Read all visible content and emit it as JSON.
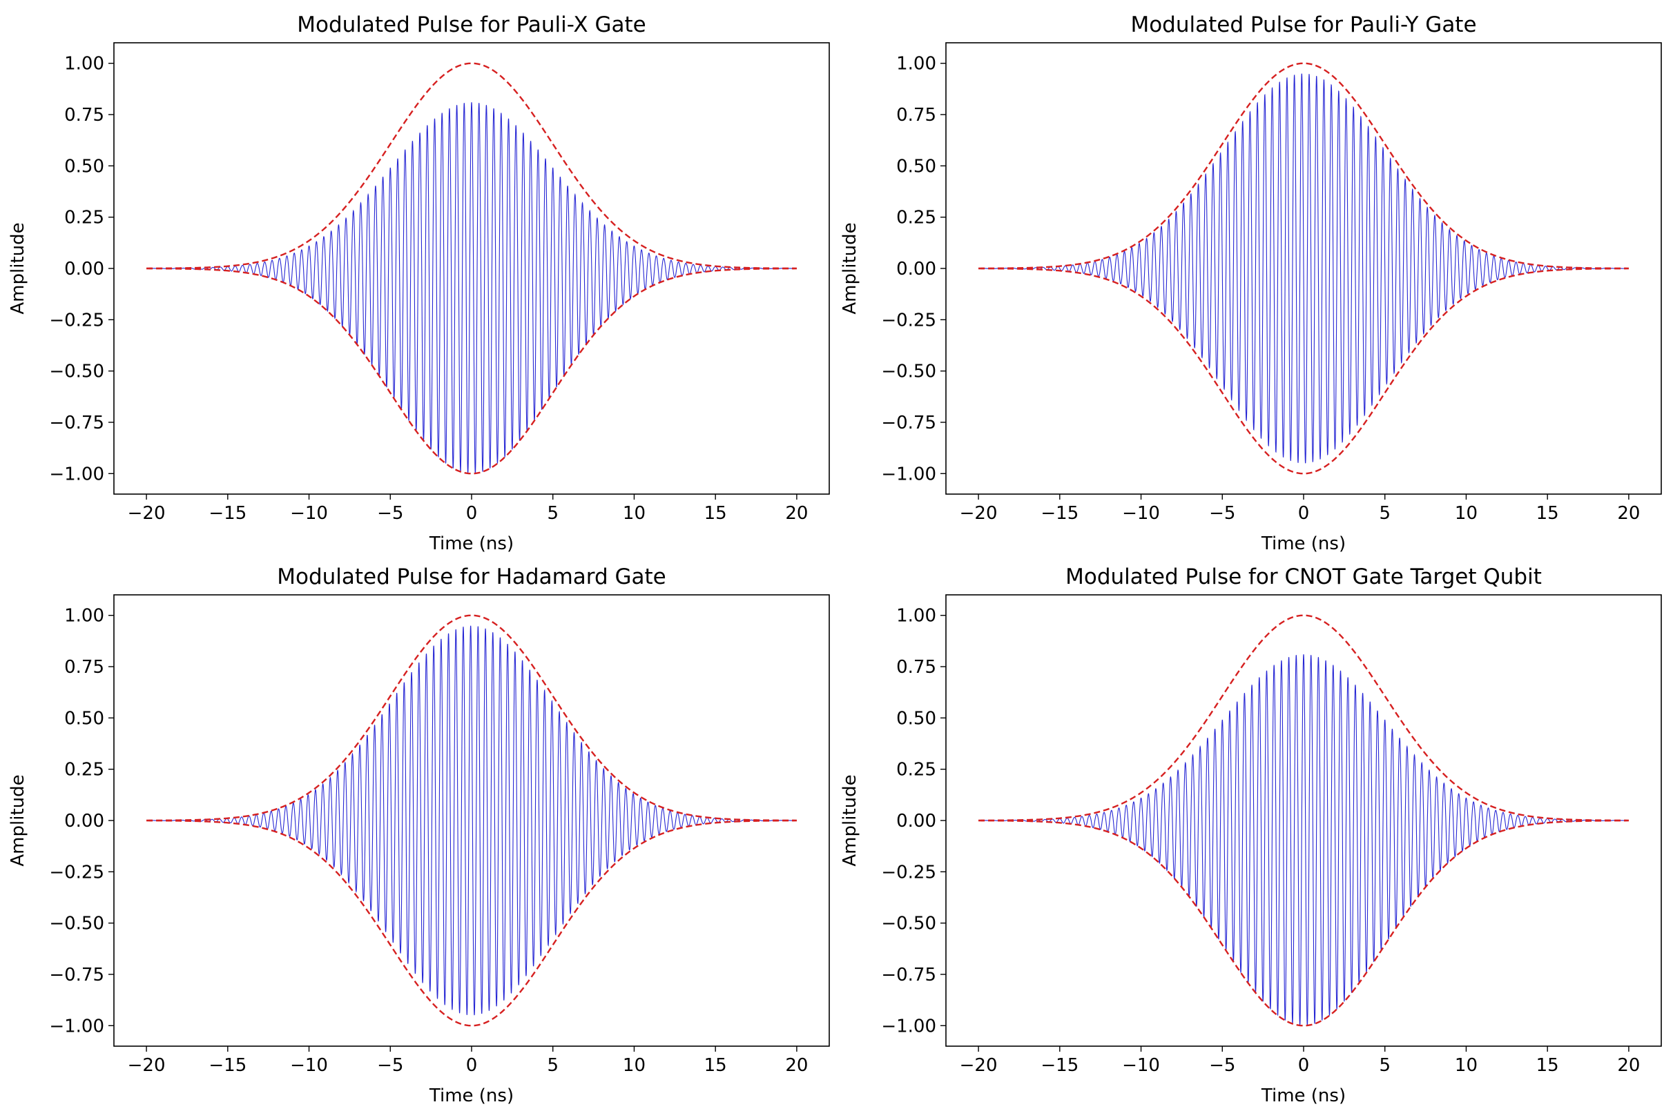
{
  "figure": {
    "layout": "2x2 grid of line charts"
  },
  "chart_data": [
    {
      "type": "line",
      "title": "Modulated Pulse for Pauli-X Gate",
      "xlabel": "Time (ns)",
      "ylabel": "Amplitude",
      "xlim": [
        -22,
        22
      ],
      "ylim": [
        -1.1,
        1.1
      ],
      "xticks": [
        -20,
        -15,
        -10,
        -5,
        0,
        5,
        10,
        15,
        20
      ],
      "xtick_labels": [
        "−20",
        "−15",
        "−10",
        "−5",
        "0",
        "5",
        "10",
        "15",
        "20"
      ],
      "yticks": [
        1.0,
        0.75,
        0.5,
        0.25,
        0.0,
        -0.25,
        -0.5,
        -0.75,
        -1.0
      ],
      "ytick_labels": [
        "1.00",
        "0.75",
        "0.50",
        "0.25",
        "0.00",
        "−0.25",
        "−0.50",
        "−0.75",
        "−1.00"
      ],
      "grid": false,
      "series": [
        {
          "role": "modulated-signal",
          "color": "#0000cc",
          "style": "solid",
          "envelope": "gaussian",
          "sigma_ns": 5,
          "peak_amplitude": 0.81,
          "trough_amplitude": -1.0,
          "carrier_cycles_per_ns": 2.2,
          "phase": 0
        },
        {
          "role": "envelope",
          "color": "#d62020",
          "style": "dashed",
          "envelope": "gaussian",
          "sigma_ns": 5,
          "amplitude": 1.0
        }
      ]
    },
    {
      "type": "line",
      "title": "Modulated Pulse for Pauli-Y Gate",
      "xlabel": "Time (ns)",
      "ylabel": "Amplitude",
      "xlim": [
        -22,
        22
      ],
      "ylim": [
        -1.1,
        1.1
      ],
      "xticks": [
        -20,
        -15,
        -10,
        -5,
        0,
        5,
        10,
        15,
        20
      ],
      "xtick_labels": [
        "−20",
        "−15",
        "−10",
        "−5",
        "0",
        "5",
        "10",
        "15",
        "20"
      ],
      "yticks": [
        1.0,
        0.75,
        0.5,
        0.25,
        0.0,
        -0.25,
        -0.5,
        -0.75,
        -1.0
      ],
      "ytick_labels": [
        "1.00",
        "0.75",
        "0.50",
        "0.25",
        "0.00",
        "−0.25",
        "−0.50",
        "−0.75",
        "−1.00"
      ],
      "grid": false,
      "series": [
        {
          "role": "modulated-signal",
          "color": "#0000cc",
          "style": "solid",
          "envelope": "gaussian",
          "sigma_ns": 5,
          "peak_amplitude": 0.95,
          "trough_amplitude": -0.95,
          "carrier_cycles_per_ns": 2.2,
          "phase": 1.5708
        },
        {
          "role": "envelope",
          "color": "#d62020",
          "style": "dashed",
          "envelope": "gaussian",
          "sigma_ns": 5,
          "amplitude": 1.0
        }
      ]
    },
    {
      "type": "line",
      "title": "Modulated Pulse for Hadamard Gate",
      "xlabel": "Time (ns)",
      "ylabel": "Amplitude",
      "xlim": [
        -22,
        22
      ],
      "ylim": [
        -1.1,
        1.1
      ],
      "xticks": [
        -20,
        -15,
        -10,
        -5,
        0,
        5,
        10,
        15,
        20
      ],
      "xtick_labels": [
        "−20",
        "−15",
        "−10",
        "−5",
        "0",
        "5",
        "10",
        "15",
        "20"
      ],
      "yticks": [
        1.0,
        0.75,
        0.5,
        0.25,
        0.0,
        -0.25,
        -0.5,
        -0.75,
        -1.0
      ],
      "ytick_labels": [
        "1.00",
        "0.75",
        "0.50",
        "0.25",
        "0.00",
        "−0.25",
        "−0.50",
        "−0.75",
        "−1.00"
      ],
      "grid": false,
      "series": [
        {
          "role": "modulated-signal",
          "color": "#0000cc",
          "style": "solid",
          "envelope": "gaussian",
          "sigma_ns": 5,
          "peak_amplitude": 0.95,
          "trough_amplitude": -0.95,
          "carrier_cycles_per_ns": 2.2,
          "phase": 0.7854
        },
        {
          "role": "envelope",
          "color": "#d62020",
          "style": "dashed",
          "envelope": "gaussian",
          "sigma_ns": 5,
          "amplitude": 1.0
        }
      ]
    },
    {
      "type": "line",
      "title": "Modulated Pulse for CNOT Gate Target Qubit",
      "xlabel": "Time (ns)",
      "ylabel": "Amplitude",
      "xlim": [
        -22,
        22
      ],
      "ylim": [
        -1.1,
        1.1
      ],
      "xticks": [
        -20,
        -15,
        -10,
        -5,
        0,
        5,
        10,
        15,
        20
      ],
      "xtick_labels": [
        "−20",
        "−15",
        "−10",
        "−5",
        "0",
        "5",
        "10",
        "15",
        "20"
      ],
      "yticks": [
        1.0,
        0.75,
        0.5,
        0.25,
        0.0,
        -0.25,
        -0.5,
        -0.75,
        -1.0
      ],
      "ytick_labels": [
        "1.00",
        "0.75",
        "0.50",
        "0.25",
        "0.00",
        "−0.25",
        "−0.50",
        "−0.75",
        "−1.00"
      ],
      "grid": false,
      "series": [
        {
          "role": "modulated-signal",
          "color": "#0000cc",
          "style": "solid",
          "envelope": "gaussian",
          "sigma_ns": 5,
          "peak_amplitude": 0.81,
          "trough_amplitude": -1.0,
          "carrier_cycles_per_ns": 2.2,
          "phase": 0
        },
        {
          "role": "envelope",
          "color": "#d62020",
          "style": "dashed",
          "envelope": "gaussian",
          "sigma_ns": 5,
          "amplitude": 1.0
        }
      ]
    }
  ]
}
